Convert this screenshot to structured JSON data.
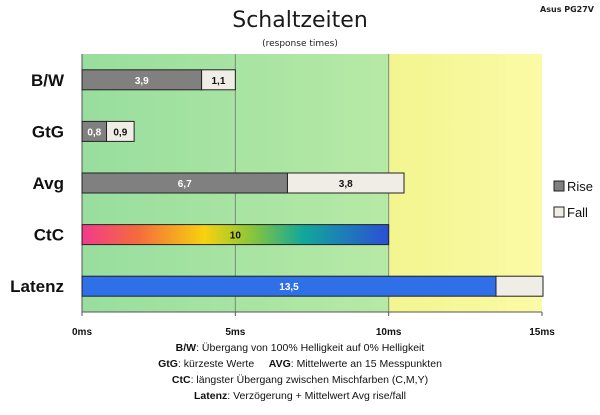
{
  "title": "Schaltzeiten",
  "subtitle": "(response times)",
  "model": "Asus PG27V",
  "chart_data": {
    "type": "bar",
    "orientation": "horizontal",
    "stacked": true,
    "categories": [
      "B/W",
      "GtG",
      "Avg",
      "CtC",
      "Latenz"
    ],
    "series": [
      {
        "name": "Rise",
        "values": [
          3.9,
          0.8,
          6.7,
          null,
          null
        ]
      },
      {
        "name": "Fall",
        "values": [
          1.1,
          0.9,
          3.8,
          null,
          null
        ]
      }
    ],
    "single_values": {
      "CtC": 10,
      "Latenz": 13.5
    },
    "latenz_fall_extends_beyond_axis": true,
    "data_labels": {
      "B/W": [
        "3,9",
        "1,1"
      ],
      "GtG": [
        "0,8",
        "0,9"
      ],
      "Avg": [
        "6,7",
        "3,8"
      ],
      "CtC": [
        "10"
      ],
      "Latenz": [
        "13,5"
      ]
    },
    "xlim": [
      0,
      15
    ],
    "xticks": [
      "0ms",
      "5ms",
      "10ms",
      "15ms"
    ],
    "legend_position": "right",
    "background_zones": [
      "green 0–10ms",
      "yellow 10–15ms"
    ],
    "colors": {
      "rise": "#808080",
      "fall": "#f0ede6",
      "latenz": "#2f6fe8",
      "zone_green": "#a4e3a6",
      "zone_yellow": "#f7f79a"
    }
  },
  "legend": {
    "rise": "Rise",
    "fall": "Fall"
  },
  "footer": {
    "line1": {
      "key": "B/W",
      "text": ":  Übergang von 100% Helligkeit auf 0% Helligkeit"
    },
    "line2": {
      "key1": "GtG",
      "text1": ": kürzeste  Werte",
      "key2": "AVG",
      "text2": ": Mittelwerte  an 15 Messpunkten"
    },
    "line3": {
      "key": "CtC",
      "text": ": längster Übergang zwischen Mischfarben (C,M,Y)"
    },
    "line4": {
      "key": "Latenz",
      "text": ": Verzögerung  + Mittelwert Avg rise/fall"
    }
  }
}
